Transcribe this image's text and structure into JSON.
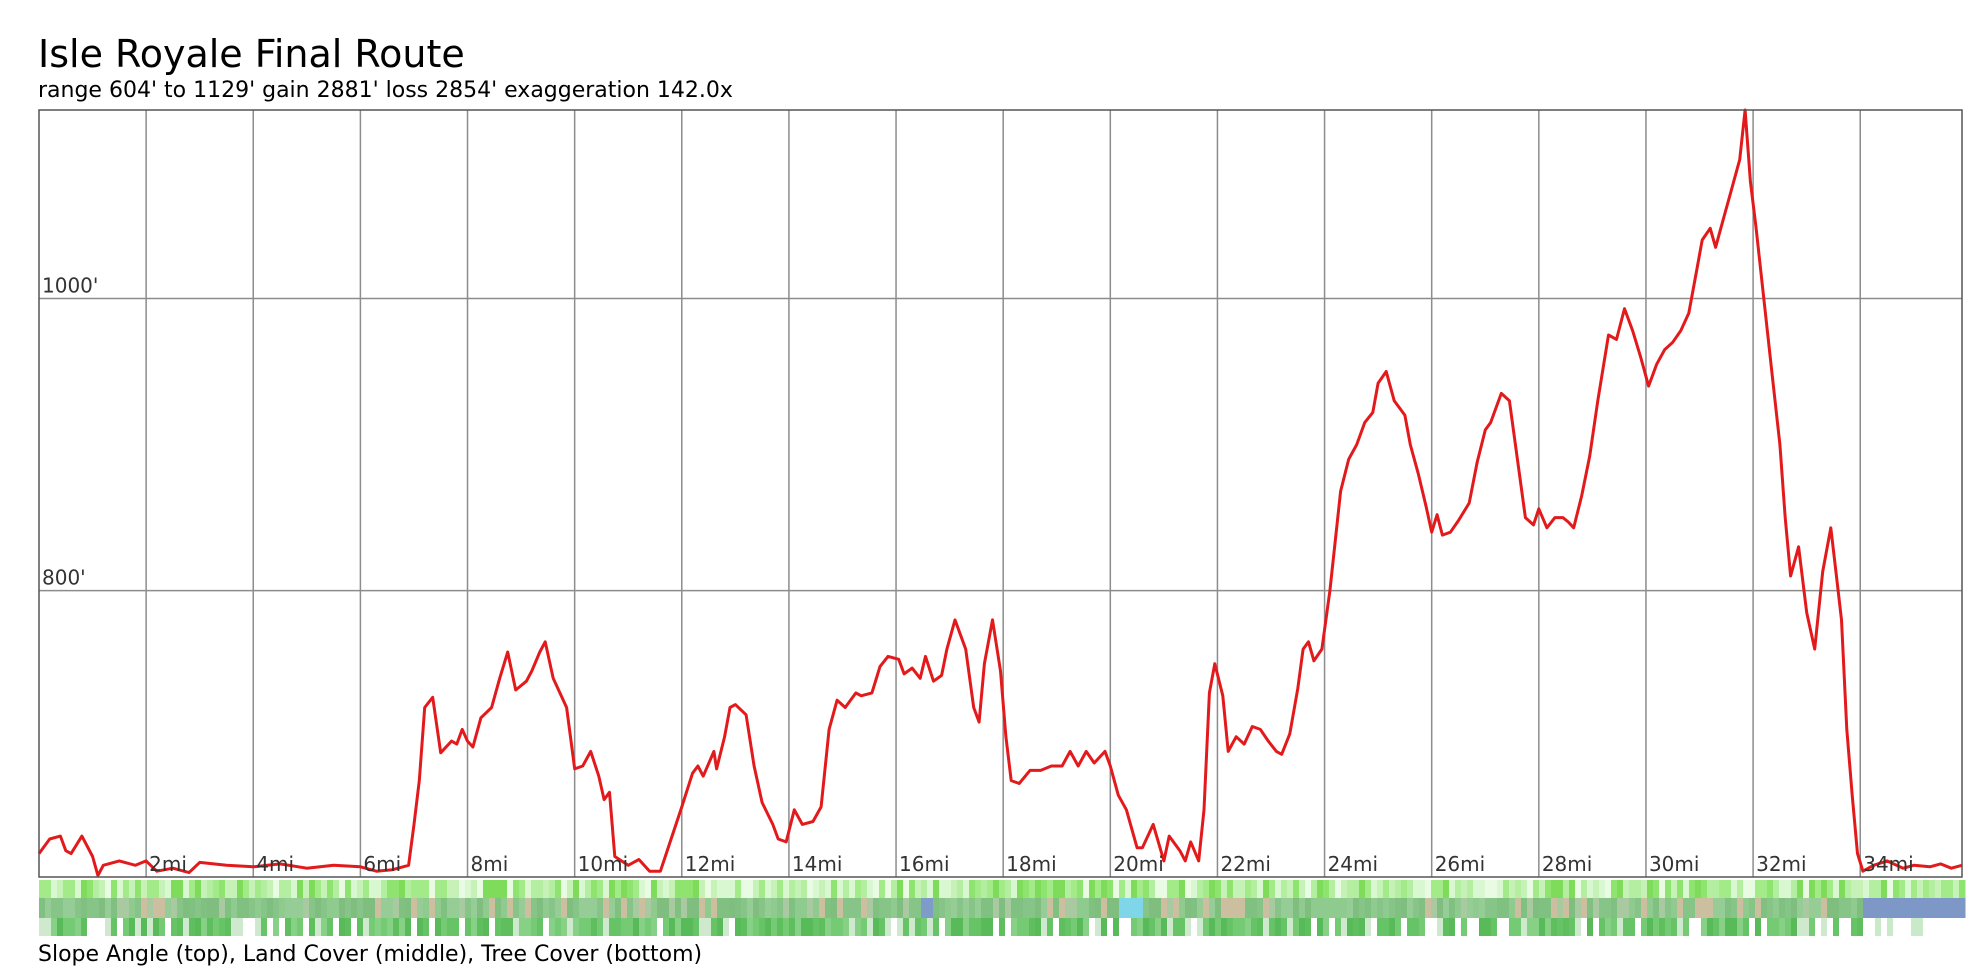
{
  "header": {
    "title": "Isle Royale Final Route",
    "stats": "range 604' to 1129'  gain 2881'  loss 2854'  exaggeration 142.0x"
  },
  "footer": {
    "caption": "Slope Angle (top), Land Cover (middle), Tree Cover (bottom)"
  },
  "chart_data": {
    "type": "line",
    "title": "Isle Royale Final Route",
    "xlabel": "",
    "ylabel": "",
    "x_unit": "mi",
    "y_unit": "ft",
    "xlim": [
      0,
      35.9
    ],
    "ylim": [
      604,
      1129
    ],
    "grid": true,
    "x_ticks": [
      {
        "value": 2,
        "label": "2mi"
      },
      {
        "value": 4,
        "label": "4mi"
      },
      {
        "value": 6,
        "label": "6mi"
      },
      {
        "value": 8,
        "label": "8mi"
      },
      {
        "value": 10,
        "label": "10mi"
      },
      {
        "value": 12,
        "label": "12mi"
      },
      {
        "value": 14,
        "label": "14mi"
      },
      {
        "value": 16,
        "label": "16mi"
      },
      {
        "value": 18,
        "label": "18mi"
      },
      {
        "value": 20,
        "label": "20mi"
      },
      {
        "value": 22,
        "label": "22mi"
      },
      {
        "value": 24,
        "label": "24mi"
      },
      {
        "value": 26,
        "label": "26mi"
      },
      {
        "value": 28,
        "label": "28mi"
      },
      {
        "value": 30,
        "label": "30mi"
      },
      {
        "value": 32,
        "label": "32mi"
      },
      {
        "value": 34,
        "label": "34mi"
      }
    ],
    "y_ticks": [
      {
        "value": 800,
        "label": "800'"
      },
      {
        "value": 1000,
        "label": "1000'"
      }
    ],
    "series": [
      {
        "color": "#e31a1c",
        "points": [
          [
            0.0,
            620
          ],
          [
            0.2,
            630
          ],
          [
            0.4,
            632
          ],
          [
            0.5,
            622
          ],
          [
            0.6,
            620
          ],
          [
            0.8,
            632
          ],
          [
            1.0,
            618
          ],
          [
            1.1,
            605
          ],
          [
            1.2,
            612
          ],
          [
            1.5,
            615
          ],
          [
            1.8,
            612
          ],
          [
            2.0,
            615
          ],
          [
            2.2,
            608
          ],
          [
            2.5,
            610
          ],
          [
            2.8,
            607
          ],
          [
            3.0,
            614
          ],
          [
            3.5,
            612
          ],
          [
            4.0,
            611
          ],
          [
            4.5,
            613
          ],
          [
            5.0,
            610
          ],
          [
            5.5,
            612
          ],
          [
            6.0,
            611
          ],
          [
            6.3,
            608
          ],
          [
            6.6,
            609
          ],
          [
            6.9,
            612
          ],
          [
            7.0,
            640
          ],
          [
            7.1,
            670
          ],
          [
            7.2,
            720
          ],
          [
            7.35,
            727
          ],
          [
            7.5,
            689
          ],
          [
            7.7,
            697
          ],
          [
            7.8,
            695
          ],
          [
            7.9,
            705
          ],
          [
            8.0,
            697
          ],
          [
            8.1,
            693
          ],
          [
            8.25,
            713
          ],
          [
            8.45,
            720
          ],
          [
            8.6,
            740
          ],
          [
            8.75,
            758
          ],
          [
            8.9,
            732
          ],
          [
            9.1,
            738
          ],
          [
            9.2,
            745
          ],
          [
            9.35,
            758
          ],
          [
            9.45,
            765
          ],
          [
            9.6,
            740
          ],
          [
            9.85,
            720
          ],
          [
            10.0,
            678
          ],
          [
            10.15,
            680
          ],
          [
            10.3,
            690
          ],
          [
            10.45,
            673
          ],
          [
            10.55,
            657
          ],
          [
            10.65,
            662
          ],
          [
            10.75,
            618
          ],
          [
            11.0,
            612
          ],
          [
            11.2,
            616
          ],
          [
            11.4,
            608
          ],
          [
            11.6,
            608
          ],
          [
            11.8,
            630
          ],
          [
            12.0,
            652
          ],
          [
            12.2,
            675
          ],
          [
            12.3,
            680
          ],
          [
            12.4,
            673
          ],
          [
            12.6,
            690
          ],
          [
            12.65,
            678
          ],
          [
            12.8,
            700
          ],
          [
            12.9,
            720
          ],
          [
            13.0,
            722
          ],
          [
            13.2,
            715
          ],
          [
            13.35,
            680
          ],
          [
            13.5,
            655
          ],
          [
            13.7,
            640
          ],
          [
            13.8,
            630
          ],
          [
            13.95,
            628
          ],
          [
            14.1,
            650
          ],
          [
            14.25,
            640
          ],
          [
            14.45,
            642
          ],
          [
            14.6,
            652
          ],
          [
            14.75,
            705
          ],
          [
            14.9,
            725
          ],
          [
            15.05,
            720
          ],
          [
            15.25,
            730
          ],
          [
            15.35,
            728
          ],
          [
            15.55,
            730
          ],
          [
            15.7,
            748
          ],
          [
            15.85,
            755
          ],
          [
            16.05,
            753
          ],
          [
            16.15,
            743
          ],
          [
            16.3,
            747
          ],
          [
            16.45,
            740
          ],
          [
            16.55,
            755
          ],
          [
            16.7,
            738
          ],
          [
            16.85,
            742
          ],
          [
            16.95,
            760
          ],
          [
            17.1,
            780
          ],
          [
            17.3,
            760
          ],
          [
            17.45,
            720
          ],
          [
            17.55,
            710
          ],
          [
            17.65,
            750
          ],
          [
            17.8,
            780
          ],
          [
            17.95,
            745
          ],
          [
            18.05,
            700
          ],
          [
            18.15,
            670
          ],
          [
            18.3,
            668
          ],
          [
            18.5,
            677
          ],
          [
            18.7,
            677
          ],
          [
            18.9,
            680
          ],
          [
            19.1,
            680
          ],
          [
            19.25,
            690
          ],
          [
            19.4,
            680
          ],
          [
            19.55,
            690
          ],
          [
            19.7,
            682
          ],
          [
            19.9,
            690
          ],
          [
            20.0,
            680
          ],
          [
            20.15,
            660
          ],
          [
            20.3,
            650
          ],
          [
            20.5,
            624
          ],
          [
            20.6,
            624
          ],
          [
            20.8,
            640
          ],
          [
            21.0,
            615
          ],
          [
            21.1,
            632
          ],
          [
            21.3,
            622
          ],
          [
            21.4,
            615
          ],
          [
            21.5,
            628
          ],
          [
            21.65,
            615
          ],
          [
            21.75,
            650
          ],
          [
            21.85,
            730
          ],
          [
            21.95,
            750
          ],
          [
            22.1,
            728
          ],
          [
            22.2,
            690
          ],
          [
            22.35,
            700
          ],
          [
            22.5,
            695
          ],
          [
            22.65,
            707
          ],
          [
            22.8,
            705
          ],
          [
            22.95,
            697
          ],
          [
            23.1,
            690
          ],
          [
            23.2,
            688
          ],
          [
            23.35,
            702
          ],
          [
            23.5,
            733
          ],
          [
            23.6,
            760
          ],
          [
            23.7,
            765
          ],
          [
            23.8,
            752
          ],
          [
            23.95,
            760
          ],
          [
            24.1,
            800
          ],
          [
            24.3,
            868
          ],
          [
            24.45,
            890
          ],
          [
            24.6,
            900
          ],
          [
            24.75,
            915
          ],
          [
            24.9,
            922
          ],
          [
            25.0,
            942
          ],
          [
            25.15,
            950
          ],
          [
            25.3,
            930
          ],
          [
            25.5,
            920
          ],
          [
            25.6,
            900
          ],
          [
            25.75,
            880
          ],
          [
            25.9,
            857
          ],
          [
            26.0,
            840
          ],
          [
            26.1,
            852
          ],
          [
            26.2,
            838
          ],
          [
            26.35,
            840
          ],
          [
            26.5,
            848
          ],
          [
            26.7,
            860
          ],
          [
            26.85,
            888
          ],
          [
            27.0,
            910
          ],
          [
            27.1,
            915
          ],
          [
            27.3,
            935
          ],
          [
            27.45,
            930
          ],
          [
            27.6,
            890
          ],
          [
            27.75,
            850
          ],
          [
            27.9,
            845
          ],
          [
            28.0,
            856
          ],
          [
            28.15,
            843
          ],
          [
            28.3,
            850
          ],
          [
            28.45,
            850
          ],
          [
            28.55,
            847
          ],
          [
            28.65,
            843
          ],
          [
            28.8,
            865
          ],
          [
            28.95,
            892
          ],
          [
            29.1,
            930
          ],
          [
            29.3,
            975
          ],
          [
            29.45,
            972
          ],
          [
            29.6,
            993
          ],
          [
            29.75,
            978
          ],
          [
            29.9,
            960
          ],
          [
            30.05,
            940
          ],
          [
            30.2,
            955
          ],
          [
            30.35,
            965
          ],
          [
            30.5,
            970
          ],
          [
            30.65,
            978
          ],
          [
            30.8,
            990
          ],
          [
            30.95,
            1020
          ],
          [
            31.05,
            1040
          ],
          [
            31.2,
            1048
          ],
          [
            31.3,
            1035
          ],
          [
            31.45,
            1055
          ],
          [
            31.6,
            1075
          ],
          [
            31.75,
            1095
          ],
          [
            31.85,
            1129
          ],
          [
            31.95,
            1080
          ],
          [
            32.05,
            1050
          ],
          [
            32.2,
            1000
          ],
          [
            32.35,
            950
          ],
          [
            32.5,
            900
          ],
          [
            32.6,
            850
          ],
          [
            32.7,
            810
          ],
          [
            32.85,
            830
          ],
          [
            33.0,
            785
          ],
          [
            33.15,
            760
          ],
          [
            33.3,
            813
          ],
          [
            33.45,
            843
          ],
          [
            33.55,
            812
          ],
          [
            33.65,
            780
          ],
          [
            33.75,
            705
          ],
          [
            33.85,
            660
          ],
          [
            33.95,
            620
          ],
          [
            34.05,
            608
          ],
          [
            34.25,
            612
          ],
          [
            34.5,
            615
          ],
          [
            34.8,
            610
          ],
          [
            35.0,
            612
          ],
          [
            35.3,
            611
          ],
          [
            35.5,
            613
          ],
          [
            35.7,
            610
          ],
          [
            35.9,
            612
          ]
        ]
      }
    ]
  }
}
